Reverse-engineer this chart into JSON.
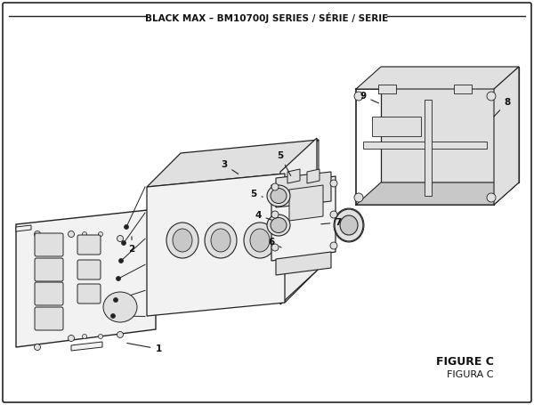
{
  "title": "BLACK MAX – BM10700J SERIES / SÉRIE / SERIE",
  "figure_label": "FIGURE C",
  "figura_label": "FIGURA C",
  "background_color": "#ffffff",
  "line_color": "#222222",
  "text_color": "#111111",
  "gray_light": "#f2f2f2",
  "gray_mid": "#e0e0e0",
  "gray_dark": "#c8c8c8"
}
